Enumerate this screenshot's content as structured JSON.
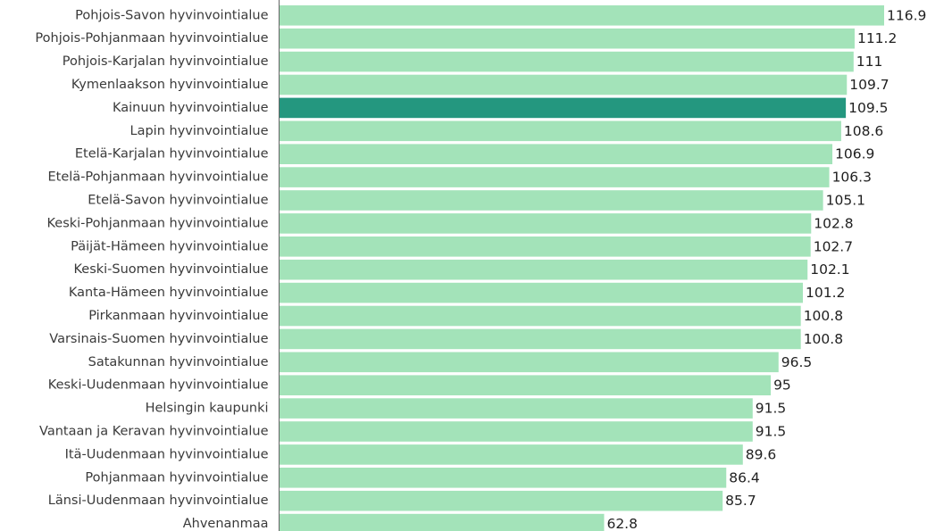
{
  "chart_data": {
    "type": "bar",
    "orientation": "horizontal",
    "title": "",
    "xlabel": "",
    "ylabel": "",
    "grid": false,
    "xlim": [
      0,
      116.9
    ],
    "categories": [
      "Pohjois-Savon hyvinvointialue",
      "Pohjois-Pohjanmaan hyvinvointialue",
      "Pohjois-Karjalan hyvinvointialue",
      "Kymenlaakson hyvinvointialue",
      "Kainuun hyvinvointialue",
      "Lapin hyvinvointialue",
      "Etelä-Karjalan hyvinvointialue",
      "Etelä-Pohjanmaan hyvinvointialue",
      "Etelä-Savon hyvinvointialue",
      "Keski-Pohjanmaan hyvinvointialue",
      "Päijät-Hämeen hyvinvointialue",
      "Keski-Suomen hyvinvointialue",
      "Kanta-Hämeen hyvinvointialue",
      "Pirkanmaan hyvinvointialue",
      "Varsinais-Suomen hyvinvointialue",
      "Satakunnan hyvinvointialue",
      "Keski-Uudenmaan hyvinvointialue",
      "Helsingin kaupunki",
      "Vantaan ja Keravan hyvinvointialue",
      "Itä-Uudenmaan hyvinvointialue",
      "Pohjanmaan hyvinvointialue",
      "Länsi-Uudenmaan hyvinvointialue",
      "Ahvenanmaa"
    ],
    "values": [
      116.9,
      111.2,
      111,
      109.7,
      109.5,
      108.6,
      106.9,
      106.3,
      105.1,
      102.8,
      102.7,
      102.1,
      101.2,
      100.8,
      100.8,
      96.5,
      95,
      91.5,
      91.5,
      89.6,
      86.4,
      85.7,
      62.8
    ],
    "value_labels": [
      "116.9",
      "111.2",
      "111",
      "109.7",
      "109.5",
      "108.6",
      "106.9",
      "106.3",
      "105.1",
      "102.8",
      "102.7",
      "102.1",
      "101.2",
      "100.8",
      "100.8",
      "96.5",
      "95",
      "91.5",
      "91.5",
      "89.6",
      "86.4",
      "85.7",
      "62.8"
    ],
    "highlighted_category": "Kainuun hyvinvointialue",
    "colors": {
      "bar": "#a3e3b9",
      "highlight": "#24977f",
      "axis": "#666666"
    }
  }
}
